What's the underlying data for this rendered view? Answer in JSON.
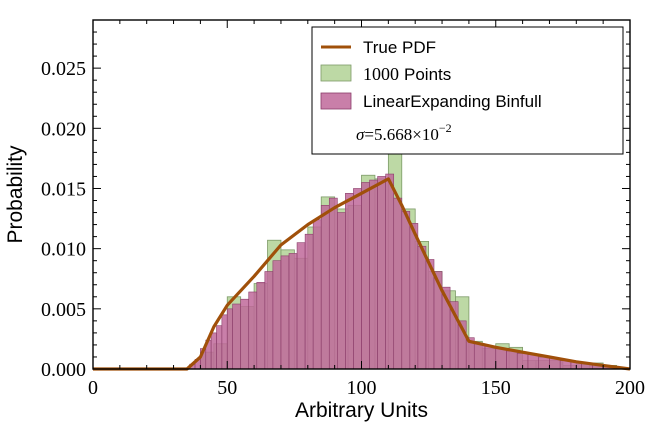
{
  "chart_data": {
    "type": "bar",
    "xlabel": "Arbitrary Units",
    "ylabel": "Probability",
    "xlim": [
      0,
      200
    ],
    "ylim": [
      0,
      0.029
    ],
    "x_ticks": [
      0,
      50,
      100,
      150,
      200
    ],
    "x_tick_labels": [
      "0",
      "50",
      "100",
      "150",
      "200"
    ],
    "y_ticks": [
      0,
      0.005,
      0.01,
      0.015,
      0.02,
      0.025
    ],
    "y_tick_labels": [
      "0.000",
      "0.005",
      "0.010",
      "0.015",
      "0.020",
      "0.025"
    ],
    "grid": false,
    "legend_position": "top-right",
    "legend": [
      {
        "label": "True PDF",
        "color": "#a0500a",
        "kind": "line"
      },
      {
        "label_number": "1000",
        "label_text": "Points",
        "color": "#b2d295",
        "kind": "patch"
      },
      {
        "label": "LinearExpanding Binfull",
        "color": "#c0689a",
        "kind": "patch"
      }
    ],
    "annotation": {
      "sigma_prefix": "σ",
      "sigma_mantissa": "=5.668",
      "sigma_times": "×10",
      "sigma_exponent": "−2"
    },
    "series": [
      {
        "name": "True PDF",
        "kind": "line",
        "color": "#a0500a",
        "points": [
          [
            0,
            0
          ],
          [
            35,
            0
          ],
          [
            40,
            0.001
          ],
          [
            45,
            0.0035
          ],
          [
            50,
            0.0053
          ],
          [
            60,
            0.0077
          ],
          [
            70,
            0.0103
          ],
          [
            80,
            0.012
          ],
          [
            90,
            0.0134
          ],
          [
            100,
            0.0146
          ],
          [
            110,
            0.0158
          ],
          [
            115,
            0.0136
          ],
          [
            120,
            0.0112
          ],
          [
            130,
            0.0065
          ],
          [
            140,
            0.0023
          ],
          [
            150,
            0.0018
          ],
          [
            160,
            0.0014
          ],
          [
            170,
            0.001
          ],
          [
            180,
            0.0006
          ],
          [
            190,
            0.0003
          ],
          [
            200,
            0
          ]
        ]
      },
      {
        "name": "1000 Points",
        "kind": "bars",
        "color": "#b2d295",
        "edge": "#7d9a68",
        "bin_width": 5,
        "bins": [
          [
            35,
            0
          ],
          [
            40,
            0.0014
          ],
          [
            45,
            0.0021
          ],
          [
            50,
            0.006
          ],
          [
            55,
            0.0052
          ],
          [
            60,
            0.0071
          ],
          [
            65,
            0.0107
          ],
          [
            70,
            0.0099
          ],
          [
            75,
            0.0092
          ],
          [
            80,
            0.0118
          ],
          [
            85,
            0.0143
          ],
          [
            90,
            0.0133
          ],
          [
            95,
            0.0136
          ],
          [
            100,
            0.0161
          ],
          [
            105,
            0.0158
          ],
          [
            110,
            0.0179
          ],
          [
            115,
            0.0133
          ],
          [
            120,
            0.0106
          ],
          [
            125,
            0.0081
          ],
          [
            130,
            0.0065
          ],
          [
            135,
            0.006
          ],
          [
            140,
            0.0023
          ],
          [
            145,
            0.0017
          ],
          [
            150,
            0.0021
          ],
          [
            155,
            0.0018
          ],
          [
            160,
            0.0007
          ],
          [
            165,
            0.0007
          ],
          [
            170,
            0.0007
          ],
          [
            175,
            0.0003
          ],
          [
            180,
            0.0005
          ],
          [
            185,
            0.0005
          ],
          [
            190,
            0.0003
          ],
          [
            195,
            0
          ]
        ]
      },
      {
        "name": "LinearExpanding Binfull",
        "kind": "bars",
        "color": "#c0689a",
        "edge": "#8a3d69",
        "bins": [
          [
            36,
            38,
            0.0004
          ],
          [
            38,
            40,
            0.0008
          ],
          [
            40,
            42,
            0.0017
          ],
          [
            42,
            44,
            0.0024
          ],
          [
            44,
            46,
            0.003
          ],
          [
            46,
            48,
            0.0036
          ],
          [
            48,
            50,
            0.0045
          ],
          [
            50,
            52,
            0.005
          ],
          [
            52,
            55,
            0.0054
          ],
          [
            55,
            58,
            0.0058
          ],
          [
            58,
            61,
            0.0064
          ],
          [
            61,
            64,
            0.0072
          ],
          [
            64,
            67,
            0.0081
          ],
          [
            67,
            70,
            0.009
          ],
          [
            70,
            73,
            0.0094
          ],
          [
            73,
            76,
            0.0096
          ],
          [
            76,
            79,
            0.0105
          ],
          [
            79,
            82,
            0.0112
          ],
          [
            82,
            85,
            0.0124
          ],
          [
            85,
            88,
            0.0136
          ],
          [
            88,
            91,
            0.0142
          ],
          [
            91,
            94,
            0.013
          ],
          [
            94,
            97,
            0.0146
          ],
          [
            97,
            100,
            0.015
          ],
          [
            100,
            103,
            0.0155
          ],
          [
            103,
            106,
            0.0157
          ],
          [
            106,
            109,
            0.016
          ],
          [
            109,
            112,
            0.0162
          ],
          [
            112,
            115,
            0.0142
          ],
          [
            115,
            118,
            0.0131
          ],
          [
            118,
            121,
            0.0121
          ],
          [
            121,
            124,
            0.0102
          ],
          [
            124,
            127,
            0.0091
          ],
          [
            127,
            130,
            0.0081
          ],
          [
            130,
            133,
            0.0068
          ],
          [
            133,
            136,
            0.0056
          ],
          [
            136,
            139,
            0.004
          ],
          [
            139,
            142,
            0.0026
          ],
          [
            142,
            146,
            0.0021
          ],
          [
            146,
            150,
            0.0019
          ],
          [
            150,
            154,
            0.0017
          ],
          [
            154,
            158,
            0.0015
          ],
          [
            158,
            162,
            0.0013
          ],
          [
            162,
            166,
            0.0012
          ],
          [
            166,
            170,
            0.001
          ],
          [
            170,
            174,
            0.0009
          ],
          [
            174,
            178,
            0.0007
          ],
          [
            178,
            182,
            0.0006
          ],
          [
            182,
            186,
            0.0005
          ],
          [
            186,
            190,
            0.0004
          ],
          [
            190,
            195,
            0.0002
          ],
          [
            195,
            200,
            0.0001
          ]
        ]
      }
    ]
  }
}
